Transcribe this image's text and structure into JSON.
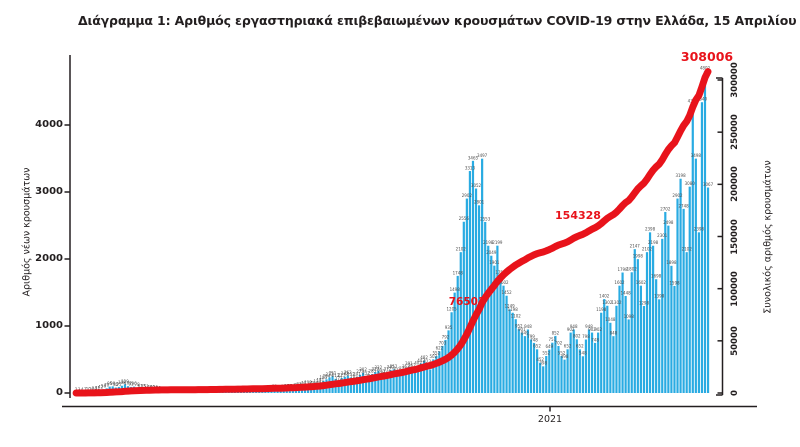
{
  "title": "Διάγραμμα 1: Αριθμός εργαστηριακά επιβεβαιωμένων κρουσμάτων COVID-19 στην Ελλάδα, 15 Απριλίου 2021",
  "colors": {
    "bar": "#29ABE2",
    "line": "#E8131B",
    "axis": "#231F20",
    "bar_label_text": "#4d4d4d",
    "background": "#FFFFFF"
  },
  "axes": {
    "left": {
      "title": "Αριθμός νέων κρουσμάτων",
      "tick_values": [
        "0",
        "1000",
        "2000",
        "3000",
        "4000"
      ]
    },
    "right": {
      "title": "Συνολικός αριθμός κρουσμάτων",
      "tick_values": [
        "0",
        "50000",
        "100000",
        "150000",
        "200000",
        "250000",
        "300000"
      ]
    },
    "x": {
      "year_label": "2021"
    }
  },
  "annotations": {
    "cumulative_label_1": "76503",
    "cumulative_label_2": "154328",
    "cumulative_label_3": "308006"
  },
  "chart_data": {
    "type": "bar+line",
    "title": "Διάγραμμα 1: Αριθμός εργαστηριακά επιβεβαιωμένων κρουσμάτων COVID-19 στην Ελλάδα, 15 Απριλίου 2021",
    "xlabel": "",
    "x_tick_labels": [
      "2021"
    ],
    "ylabel_left": "Αριθμός νέων κρουσμάτων",
    "ylabel_right": "Συνολικός αριθμός κρουσμάτων",
    "ylim_left": [
      0,
      4800
    ],
    "ylim_right": [
      0,
      300000
    ],
    "grid": false,
    "legend": false,
    "sampling_note": "daily new-case bars, sampled here as one value per two days across the full axis span; each bar carries a tiny printed data label",
    "bar_series": {
      "name": "Αριθμός νέων κρουσμάτων (ημερήσια κρούσματα)",
      "values": [
        2,
        3,
        4,
        7,
        10,
        16,
        24,
        31,
        42,
        56,
        70,
        95,
        99,
        82,
        91,
        108,
        129,
        102,
        91,
        96,
        78,
        62,
        55,
        51,
        45,
        40,
        35,
        29,
        24,
        19,
        15,
        12,
        10,
        14,
        12,
        10,
        12,
        15,
        10,
        12,
        10,
        13,
        16,
        11,
        13,
        18,
        21,
        15,
        19,
        21,
        26,
        31,
        22,
        26,
        31,
        36,
        30,
        25,
        31,
        28,
        26,
        31,
        36,
        41,
        46,
        52,
        36,
        42,
        52,
        57,
        62,
        56,
        72,
        77,
        83,
        103,
        112,
        92,
        103,
        124,
        151,
        183,
        204,
        233,
        251,
        212,
        172,
        223,
        242,
        262,
        233,
        183,
        241,
        273,
        302,
        252,
        204,
        283,
        312,
        332,
        283,
        242,
        312,
        342,
        352,
        302,
        252,
        322,
        352,
        391,
        362,
        302,
        402,
        442,
        482,
        423,
        352,
        502,
        552,
        622,
        703,
        792,
        935,
        1205,
        1498,
        1748,
        2102,
        2556,
        2902,
        3313,
        3465,
        3052,
        2801,
        3497,
        2553,
        2198,
        2049,
        1901,
        2199,
        1751,
        1602,
        1452,
        1249,
        1198,
        1102,
        952,
        901,
        849,
        948,
        799,
        748,
        652,
        452,
        398,
        552,
        649,
        751,
        852,
        702,
        552,
        498,
        652,
        902,
        948,
        802,
        652,
        548,
        798,
        948,
        902,
        748,
        902,
        1198,
        1402,
        1302,
        1048,
        848,
        1302,
        1602,
        1798,
        1448,
        1098,
        1802,
        2147,
        1998,
        1602,
        1298,
        2102,
        2398,
        2198,
        1698,
        1398,
        2301,
        2702,
        2498,
        1898,
        1598,
        2902,
        3198,
        2748,
        2102,
        3080,
        4309,
        3498,
        2398,
        4340,
        4802,
        3067
      ]
    },
    "line_series": {
      "name": "Συνολικός αριθμός κρουσμάτων (αθροιστικά)",
      "derivation": "cumulative sum of daily new cases",
      "end_value": 308006,
      "labeled_points": [
        76503,
        154328,
        308006
      ]
    }
  }
}
